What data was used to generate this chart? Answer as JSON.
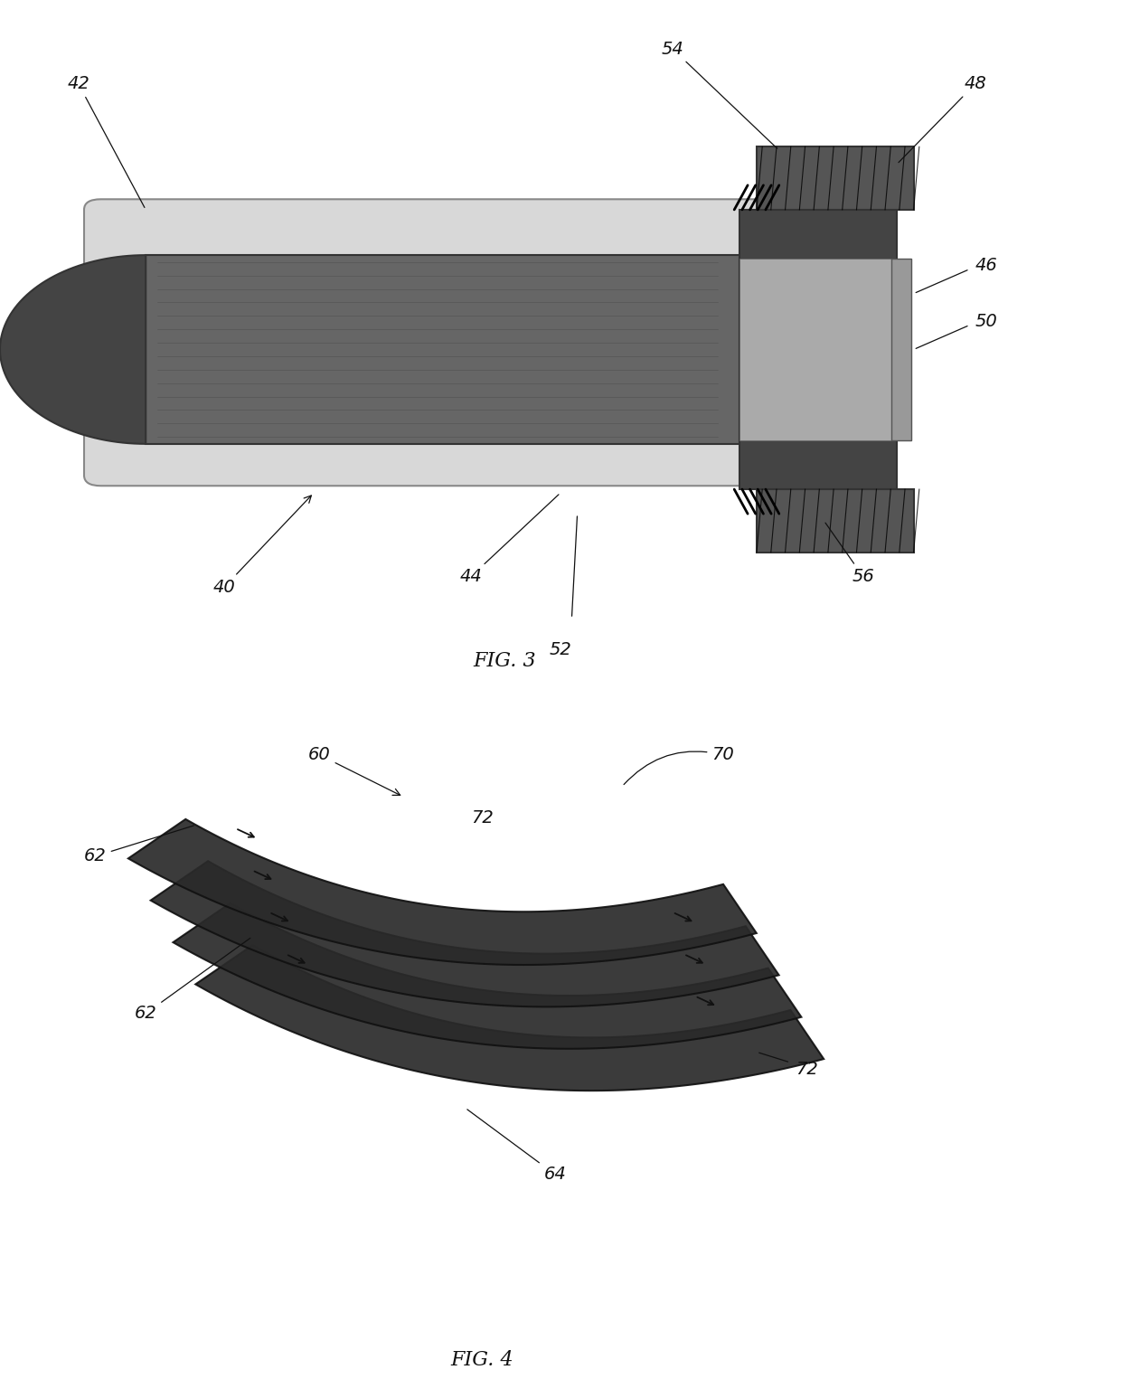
{
  "bg_color": "#ffffff",
  "fig3_caption": "FIG. 3",
  "fig4_caption": "FIG. 4"
}
